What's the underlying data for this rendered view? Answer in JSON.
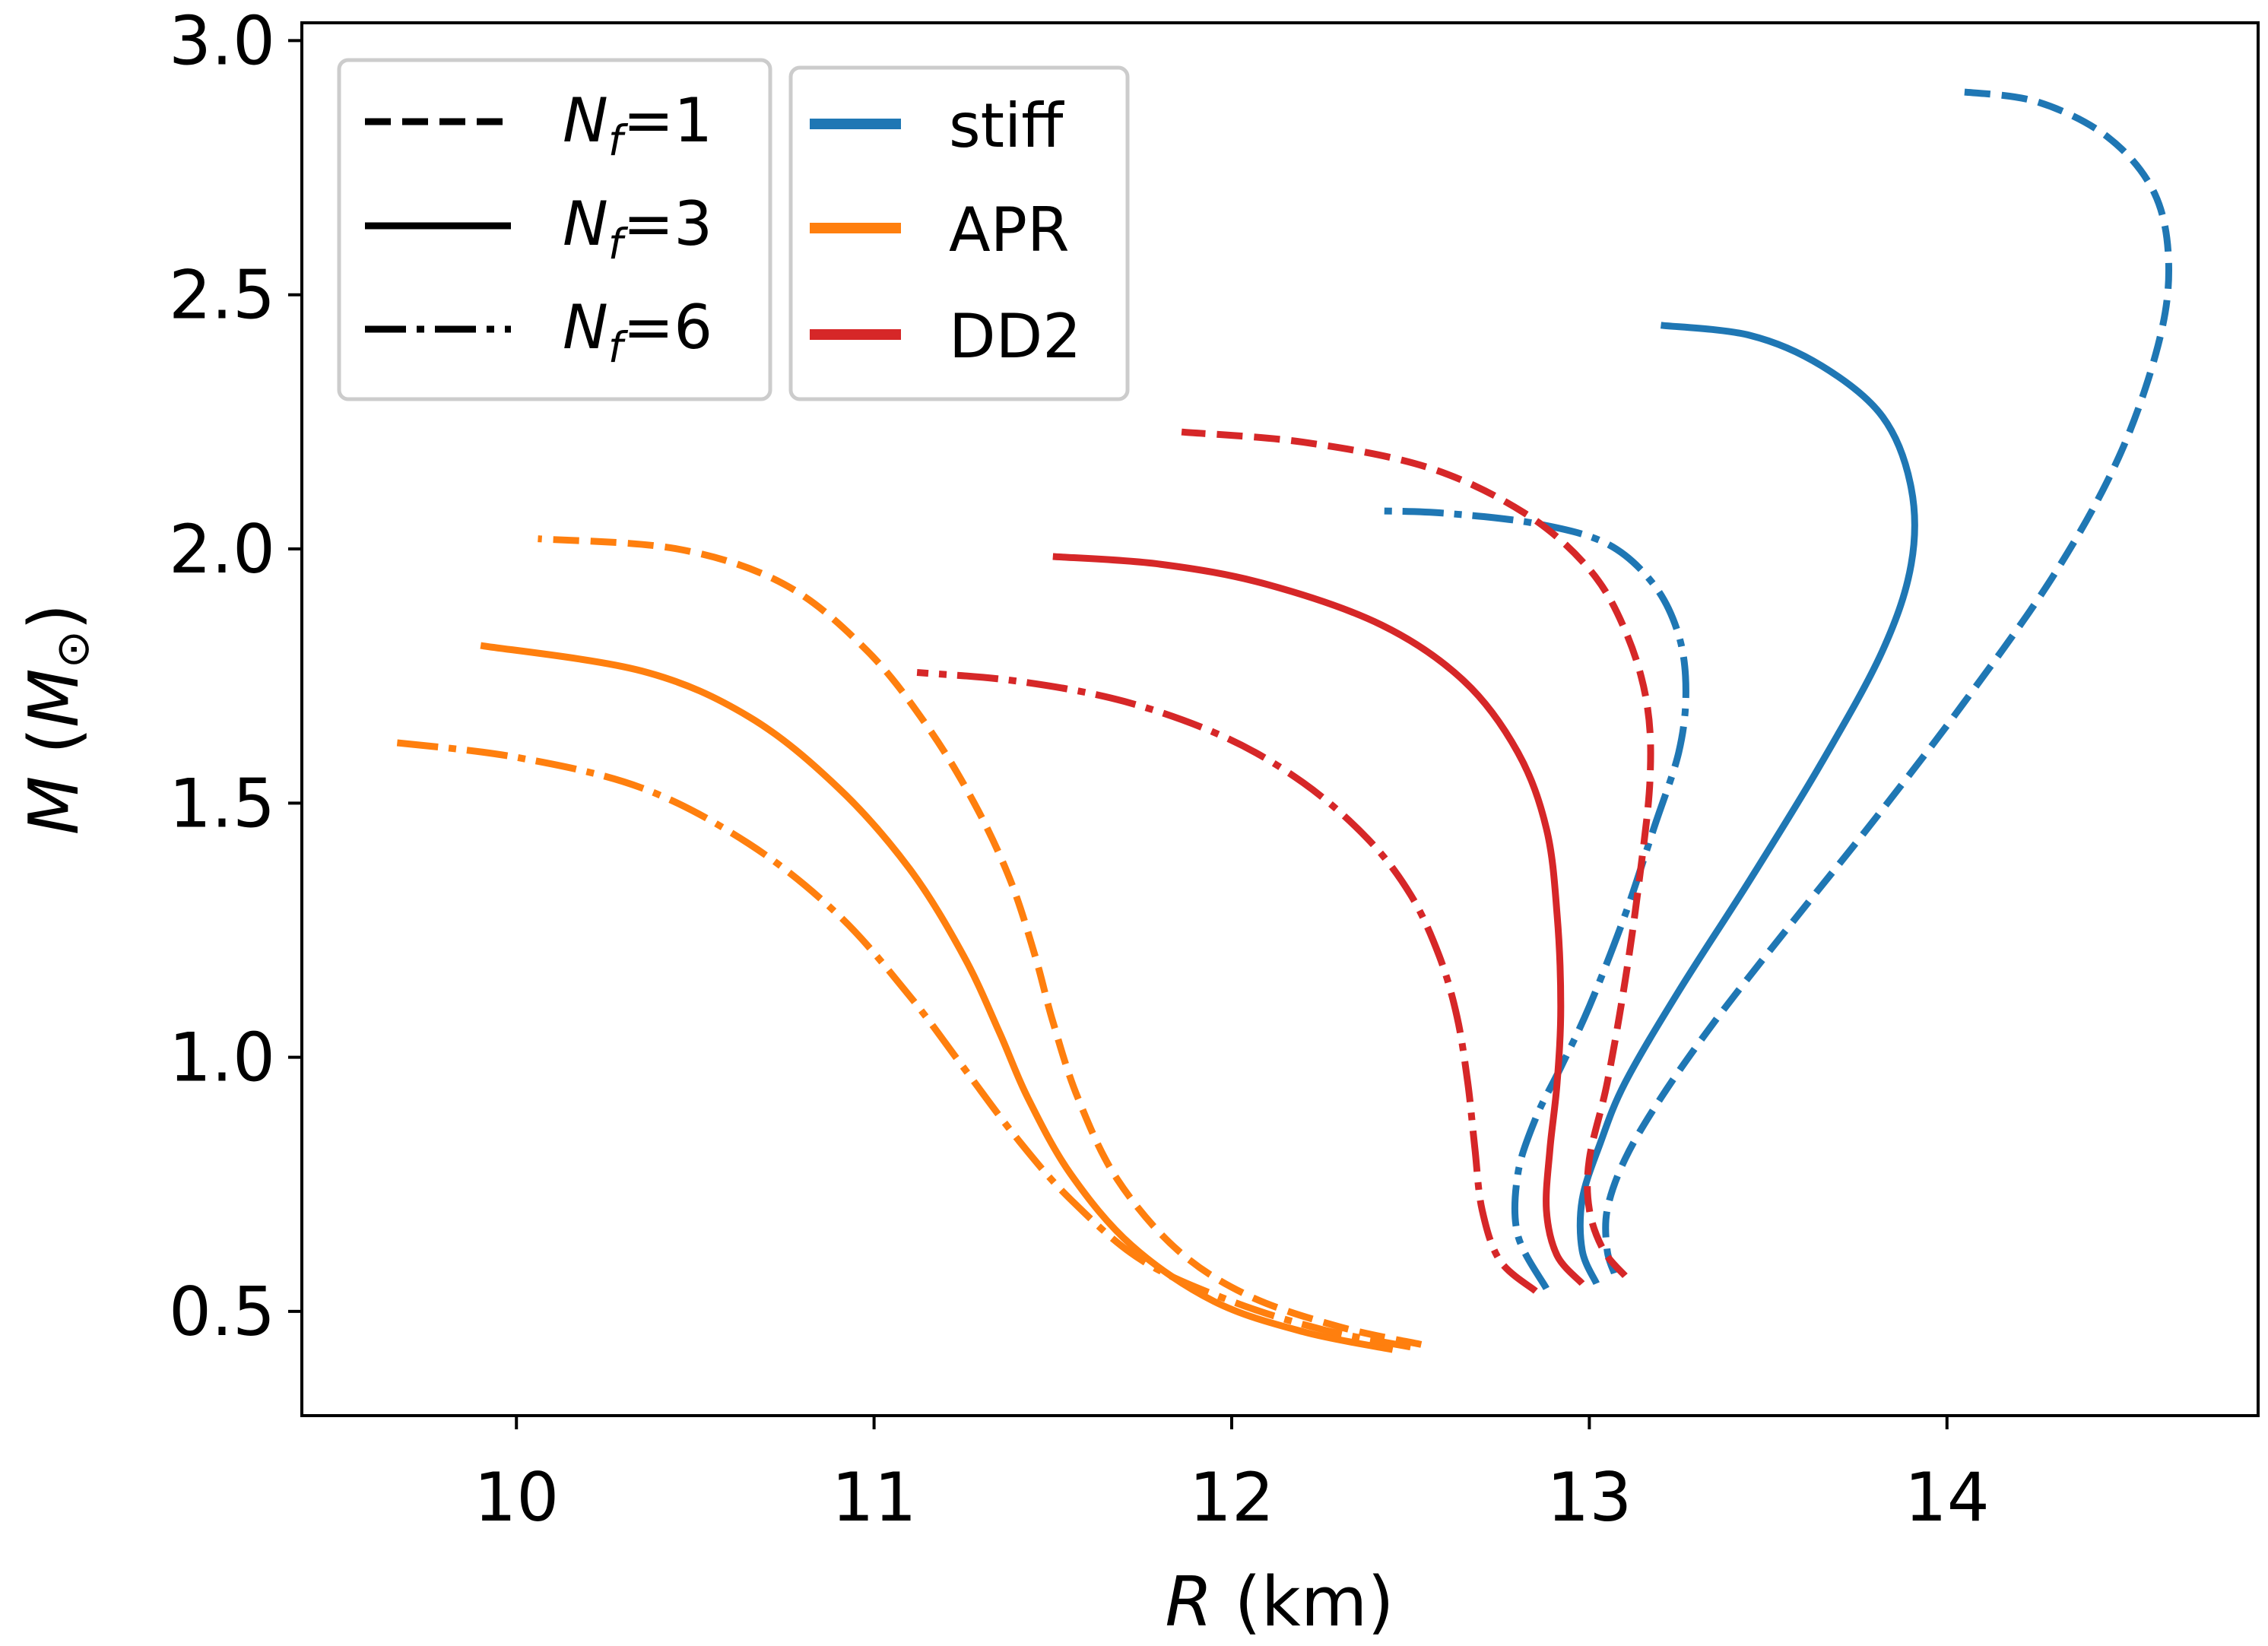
{
  "chart_data": {
    "type": "line",
    "title": "",
    "xlabel_var": "R",
    "xlabel_unit": " (km)",
    "ylabel_var": "M",
    "ylabel_unit_open": " (",
    "ylabel_unit_var": "M",
    "ylabel_unit_sub": "⊙",
    "ylabel_unit_close": ")",
    "xlim": [
      9.4,
      14.87
    ],
    "ylim": [
      0.295,
      3.035
    ],
    "xticks": [
      10,
      11,
      12,
      13,
      14
    ],
    "xtick_labels": [
      "10",
      "11",
      "12",
      "13",
      "14"
    ],
    "yticks": [
      0.5,
      1.0,
      1.5,
      2.0,
      2.5,
      3.0
    ],
    "ytick_labels": [
      "0.5",
      "1.0",
      "1.5",
      "2.0",
      "2.5",
      "3.0"
    ],
    "grid": false,
    "colors": {
      "stiff": "#1f77b4",
      "APR": "#ff7f0e",
      "DD2": "#d62728"
    },
    "linestyle_legend": {
      "location": "top-left",
      "entries": [
        {
          "style": "dashed",
          "var": "N",
          "sub": "f",
          "rest": "=1"
        },
        {
          "style": "solid",
          "var": "N",
          "sub": "f",
          "rest": "=3"
        },
        {
          "style": "dashdot",
          "var": "N",
          "sub": "f",
          "rest": "=6"
        }
      ]
    },
    "color_legend": {
      "location": "top-left",
      "entries": [
        {
          "key": "stiff",
          "label": "stiff"
        },
        {
          "key": "APR",
          "label": "APR"
        },
        {
          "key": "DD2",
          "label": "DD2"
        }
      ]
    },
    "series": [
      {
        "name": "stiff N_f=1",
        "eos": "stiff",
        "style": "dashed",
        "points": [
          [
            13.07,
            0.575
          ],
          [
            13.05,
            0.62
          ],
          [
            13.05,
            0.7
          ],
          [
            13.1,
            0.8
          ],
          [
            13.2,
            0.92
          ],
          [
            13.35,
            1.07
          ],
          [
            13.55,
            1.25
          ],
          [
            13.8,
            1.47
          ],
          [
            14.05,
            1.7
          ],
          [
            14.3,
            1.95
          ],
          [
            14.48,
            2.18
          ],
          [
            14.59,
            2.4
          ],
          [
            14.62,
            2.56
          ],
          [
            14.58,
            2.7
          ],
          [
            14.45,
            2.81
          ],
          [
            14.25,
            2.88
          ],
          [
            14.03,
            2.9
          ]
        ]
      },
      {
        "name": "stiff N_f=3",
        "eos": "stiff",
        "style": "solid",
        "points": [
          [
            13.02,
            0.555
          ],
          [
            12.98,
            0.62
          ],
          [
            12.98,
            0.72
          ],
          [
            13.03,
            0.83
          ],
          [
            13.1,
            0.95
          ],
          [
            13.25,
            1.13
          ],
          [
            13.45,
            1.35
          ],
          [
            13.65,
            1.58
          ],
          [
            13.82,
            1.8
          ],
          [
            13.9,
            1.97
          ],
          [
            13.9,
            2.12
          ],
          [
            13.82,
            2.26
          ],
          [
            13.65,
            2.36
          ],
          [
            13.45,
            2.42
          ],
          [
            13.2,
            2.44
          ]
        ]
      },
      {
        "name": "stiff N_f=6",
        "eos": "stiff",
        "style": "dashdot",
        "points": [
          [
            12.88,
            0.545
          ],
          [
            12.8,
            0.65
          ],
          [
            12.8,
            0.77
          ],
          [
            12.85,
            0.88
          ],
          [
            12.92,
            0.98
          ],
          [
            13.0,
            1.1
          ],
          [
            13.1,
            1.28
          ],
          [
            13.18,
            1.45
          ],
          [
            13.25,
            1.6
          ],
          [
            13.27,
            1.72
          ],
          [
            13.25,
            1.83
          ],
          [
            13.18,
            1.93
          ],
          [
            13.05,
            2.01
          ],
          [
            12.85,
            2.05
          ],
          [
            12.6,
            2.07
          ],
          [
            12.41,
            2.075
          ]
        ]
      },
      {
        "name": "APR N_f=1",
        "eos": "APR",
        "style": "dashed",
        "points": [
          [
            12.53,
            0.435
          ],
          [
            12.3,
            0.47
          ],
          [
            12.05,
            0.53
          ],
          [
            11.85,
            0.62
          ],
          [
            11.68,
            0.76
          ],
          [
            11.57,
            0.92
          ],
          [
            11.5,
            1.07
          ],
          [
            11.45,
            1.2
          ],
          [
            11.38,
            1.35
          ],
          [
            11.28,
            1.5
          ],
          [
            11.15,
            1.65
          ],
          [
            10.98,
            1.8
          ],
          [
            10.75,
            1.93
          ],
          [
            10.45,
            2.0
          ],
          [
            10.06,
            2.02
          ]
        ]
      },
      {
        "name": "APR N_f=3",
        "eos": "APR",
        "style": "solid",
        "points": [
          [
            12.45,
            0.425
          ],
          [
            12.2,
            0.46
          ],
          [
            11.95,
            0.52
          ],
          [
            11.72,
            0.63
          ],
          [
            11.55,
            0.77
          ],
          [
            11.43,
            0.92
          ],
          [
            11.35,
            1.05
          ],
          [
            11.25,
            1.2
          ],
          [
            11.1,
            1.37
          ],
          [
            10.9,
            1.53
          ],
          [
            10.65,
            1.67
          ],
          [
            10.35,
            1.76
          ],
          [
            9.9,
            1.81
          ]
        ]
      },
      {
        "name": "APR N_f=6",
        "eos": "APR",
        "style": "dashdot",
        "points": [
          [
            12.5,
            0.43
          ],
          [
            12.25,
            0.465
          ],
          [
            12.0,
            0.52
          ],
          [
            11.75,
            0.6
          ],
          [
            11.55,
            0.72
          ],
          [
            11.4,
            0.84
          ],
          [
            11.25,
            0.98
          ],
          [
            11.1,
            1.12
          ],
          [
            10.9,
            1.28
          ],
          [
            10.65,
            1.42
          ],
          [
            10.35,
            1.53
          ],
          [
            10.0,
            1.59
          ],
          [
            9.65,
            1.62
          ]
        ]
      },
      {
        "name": "DD2 N_f=1",
        "eos": "DD2",
        "style": "dashed",
        "points": [
          [
            13.1,
            0.57
          ],
          [
            13.04,
            0.62
          ],
          [
            13.0,
            0.7
          ],
          [
            13.0,
            0.8
          ],
          [
            13.05,
            0.95
          ],
          [
            13.1,
            1.15
          ],
          [
            13.14,
            1.35
          ],
          [
            13.17,
            1.55
          ],
          [
            13.16,
            1.7
          ],
          [
            13.1,
            1.84
          ],
          [
            13.0,
            1.96
          ],
          [
            12.82,
            2.07
          ],
          [
            12.55,
            2.16
          ],
          [
            12.2,
            2.21
          ],
          [
            11.86,
            2.23
          ]
        ]
      },
      {
        "name": "DD2 N_f=3",
        "eos": "DD2",
        "style": "solid",
        "points": [
          [
            12.98,
            0.555
          ],
          [
            12.91,
            0.61
          ],
          [
            12.88,
            0.7
          ],
          [
            12.89,
            0.82
          ],
          [
            12.91,
            0.95
          ],
          [
            12.92,
            1.1
          ],
          [
            12.91,
            1.28
          ],
          [
            12.88,
            1.45
          ],
          [
            12.8,
            1.6
          ],
          [
            12.65,
            1.74
          ],
          [
            12.42,
            1.85
          ],
          [
            12.1,
            1.93
          ],
          [
            11.8,
            1.97
          ],
          [
            11.5,
            1.985
          ]
        ]
      },
      {
        "name": "DD2 N_f=6",
        "eos": "DD2",
        "style": "dashdot",
        "points": [
          [
            12.85,
            0.54
          ],
          [
            12.75,
            0.6
          ],
          [
            12.7,
            0.7
          ],
          [
            12.68,
            0.82
          ],
          [
            12.66,
            0.95
          ],
          [
            12.63,
            1.08
          ],
          [
            12.58,
            1.2
          ],
          [
            12.5,
            1.32
          ],
          [
            12.38,
            1.43
          ],
          [
            12.2,
            1.54
          ],
          [
            11.98,
            1.63
          ],
          [
            11.7,
            1.7
          ],
          [
            11.4,
            1.74
          ],
          [
            11.12,
            1.757
          ]
        ]
      }
    ]
  }
}
